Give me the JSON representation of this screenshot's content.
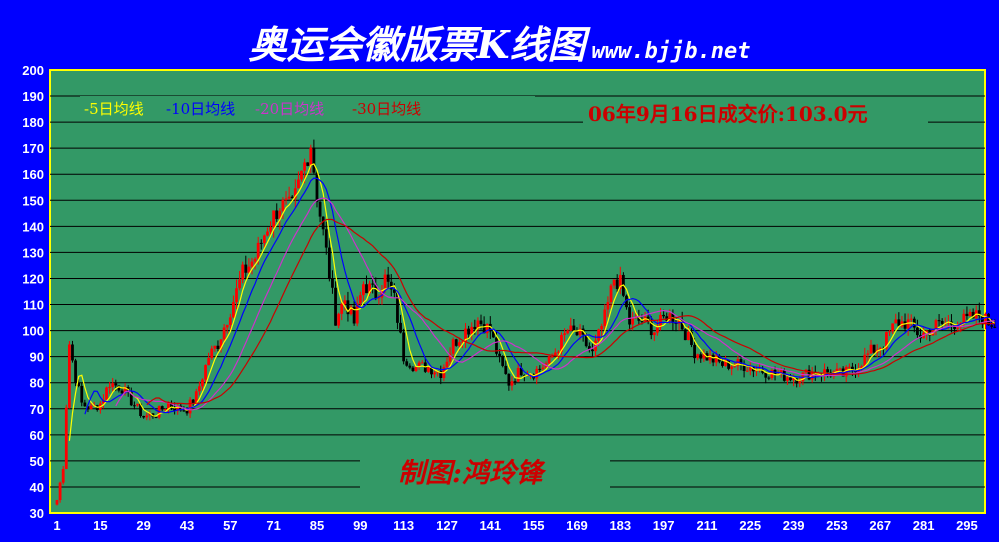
{
  "title": "奥运会徽版票K线图",
  "site": "www.bjjb.net",
  "legend": {
    "ma5": "-5日均线",
    "ma10": "-10日均线",
    "ma20": "-20日均线",
    "ma30": "-30日均线"
  },
  "price_note": "06年9月16日成交价:103.0元",
  "credit": "制图:鸿玲锋",
  "colors": {
    "background": "#0000ff",
    "plot": "#339966",
    "frame": "#ffff00",
    "up": "#ff0000",
    "down": "#000000",
    "ma5": "#ffff00",
    "ma10": "#0000ff",
    "ma20": "#cc33cc",
    "ma30": "#cc0000",
    "note": "#cc0000"
  },
  "chart_data": {
    "type": "candlestick",
    "ylim": [
      30,
      200
    ],
    "yticks": [
      30,
      40,
      50,
      60,
      70,
      80,
      90,
      100,
      110,
      120,
      130,
      140,
      150,
      160,
      170,
      180,
      190,
      200
    ],
    "xlim": [
      1,
      304
    ],
    "xticks": [
      1,
      15,
      29,
      43,
      57,
      71,
      85,
      99,
      113,
      127,
      141,
      155,
      169,
      183,
      197,
      211,
      225,
      239,
      253,
      267,
      281,
      295
    ],
    "grid": true,
    "price_path": [
      [
        1,
        35
      ],
      [
        3,
        48
      ],
      [
        5,
        95
      ],
      [
        7,
        82
      ],
      [
        9,
        72
      ],
      [
        12,
        70
      ],
      [
        15,
        72
      ],
      [
        18,
        80
      ],
      [
        22,
        78
      ],
      [
        25,
        73
      ],
      [
        29,
        67
      ],
      [
        33,
        68
      ],
      [
        37,
        72
      ],
      [
        40,
        70
      ],
      [
        43,
        70
      ],
      [
        46,
        75
      ],
      [
        50,
        90
      ],
      [
        53,
        95
      ],
      [
        57,
        108
      ],
      [
        61,
        122
      ],
      [
        65,
        128
      ],
      [
        69,
        140
      ],
      [
        73,
        148
      ],
      [
        77,
        147
      ],
      [
        80,
        160
      ],
      [
        83,
        172
      ],
      [
        85,
        152
      ],
      [
        88,
        130
      ],
      [
        91,
        105
      ],
      [
        94,
        112
      ],
      [
        97,
        103
      ],
      [
        100,
        118
      ],
      [
        104,
        114
      ],
      [
        107,
        120
      ],
      [
        110,
        112
      ],
      [
        113,
        90
      ],
      [
        117,
        86
      ],
      [
        121,
        86
      ],
      [
        125,
        84
      ],
      [
        129,
        95
      ],
      [
        133,
        100
      ],
      [
        137,
        104
      ],
      [
        141,
        100
      ],
      [
        144,
        88
      ],
      [
        147,
        80
      ],
      [
        151,
        85
      ],
      [
        155,
        84
      ],
      [
        160,
        88
      ],
      [
        166,
        100
      ],
      [
        170,
        98
      ],
      [
        174,
        91
      ],
      [
        178,
        105
      ],
      [
        181,
        120
      ],
      [
        183,
        118
      ],
      [
        186,
        103
      ],
      [
        190,
        104
      ],
      [
        194,
        100
      ],
      [
        198,
        106
      ],
      [
        202,
        104
      ],
      [
        207,
        92
      ],
      [
        211,
        90
      ],
      [
        216,
        87
      ],
      [
        222,
        87
      ],
      [
        228,
        85
      ],
      [
        234,
        83
      ],
      [
        240,
        82
      ],
      [
        245,
        84
      ],
      [
        250,
        84
      ],
      [
        255,
        83
      ],
      [
        260,
        87
      ],
      [
        264,
        92
      ],
      [
        268,
        95
      ],
      [
        272,
        103
      ],
      [
        276,
        103
      ],
      [
        280,
        98
      ],
      [
        285,
        102
      ],
      [
        290,
        103
      ],
      [
        295,
        104
      ],
      [
        299,
        106
      ],
      [
        302,
        103
      ],
      [
        304,
        103
      ]
    ]
  }
}
